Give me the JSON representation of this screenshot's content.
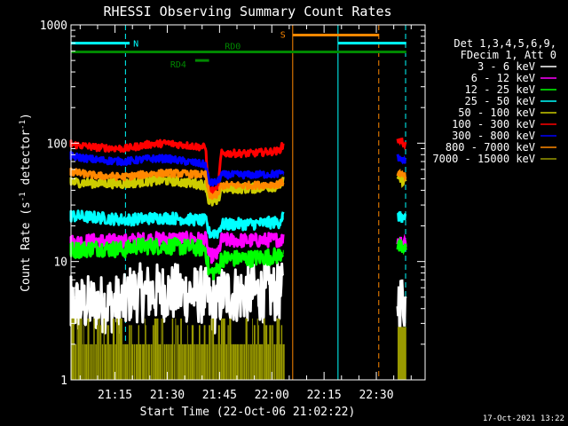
{
  "chart_data": {
    "type": "line",
    "title": "RHESSI Observing Summary Count Rates",
    "xlabel": "Start Time (22-Oct-06 21:02:22)",
    "ylabel_main": "Count Rate (s",
    "ylabel_sup": "-1",
    "ylabel_mid": " detector",
    "ylabel_end": ")",
    "x_axis": {
      "start": "21:02:22",
      "end": "22:40:00",
      "unit": "minutes after 21:00"
    },
    "y_axis": {
      "scale": "log",
      "range": [
        1,
        1000
      ]
    },
    "x_ticks": [
      {
        "label": "21:15",
        "minute": 15
      },
      {
        "label": "21:30",
        "minute": 30
      },
      {
        "label": "21:45",
        "minute": 45
      },
      {
        "label": "22:00",
        "minute": 60
      },
      {
        "label": "22:15",
        "minute": 75
      },
      {
        "label": "22:30",
        "minute": 90
      }
    ],
    "y_ticks": [
      {
        "label": "1",
        "value": 1
      },
      {
        "label": "10",
        "value": 10
      },
      {
        "label": "100",
        "value": 100
      },
      {
        "label": "1000",
        "value": 1000
      }
    ],
    "legend": {
      "placement": "right",
      "header": [
        "Det 1,3,4,5,6,9,",
        "FDecim 1, Att 0"
      ]
    },
    "series": [
      {
        "name": "3 - 6 keV",
        "color": "#ffffff",
        "points": [
          [
            0.8,
            4.2
          ],
          [
            10,
            4.4
          ],
          [
            17.9,
            4.4
          ],
          [
            19.5,
            5.4
          ],
          [
            30,
            5.5
          ],
          [
            41,
            5.2
          ],
          [
            42.5,
            4.3
          ],
          [
            44.5,
            4.3
          ],
          [
            45.5,
            5.3
          ],
          [
            54,
            5.4
          ],
          [
            63.3,
            5.5
          ]
        ],
        "recovery": [
          [
            96.1,
            4.8
          ],
          [
            98.6,
            4.5
          ]
        ],
        "noise": 0.25,
        "thick": 3
      },
      {
        "name": "6 - 12 keV",
        "color": "#ff00ff",
        "points": [
          [
            0.8,
            14.5
          ],
          [
            10,
            15.0
          ],
          [
            17.9,
            14.8
          ],
          [
            21,
            15.2
          ],
          [
            30,
            15.6
          ],
          [
            41,
            15.4
          ],
          [
            42,
            11.2
          ],
          [
            44.5,
            11.3
          ],
          [
            45.5,
            15.2
          ],
          [
            54,
            15.0
          ],
          [
            63.3,
            15.4
          ]
        ],
        "recovery": [
          [
            96.1,
            15.6
          ],
          [
            98.6,
            14.5
          ]
        ],
        "noise": 0.06,
        "thick": 3
      },
      {
        "name": "12 - 25 keV",
        "color": "#00ff00",
        "points": [
          [
            0.8,
            12.3
          ],
          [
            10,
            13.0
          ],
          [
            17.9,
            12.6
          ],
          [
            21,
            13.5
          ],
          [
            30,
            13.5
          ],
          [
            41,
            12.9
          ],
          [
            42,
            8.0
          ],
          [
            44.5,
            8.4
          ],
          [
            45.5,
            10.6
          ],
          [
            54,
            10.6
          ],
          [
            62,
            11.2
          ],
          [
            63.3,
            12.5
          ]
        ],
        "recovery": [
          [
            96.1,
            13.2
          ],
          [
            98.6,
            12.4
          ]
        ],
        "noise": 0.07,
        "thick": 3
      },
      {
        "name": "25 - 50 keV",
        "color": "#00ffff",
        "points": [
          [
            0.8,
            24.5
          ],
          [
            10,
            23.5
          ],
          [
            17.9,
            22.5
          ],
          [
            25,
            23.2
          ],
          [
            30,
            23.4
          ],
          [
            41,
            22.2
          ],
          [
            42,
            17.5
          ],
          [
            44.5,
            17.5
          ],
          [
            45.5,
            20.5
          ],
          [
            54,
            20.8
          ],
          [
            62,
            21.5
          ],
          [
            63.3,
            24.5
          ]
        ],
        "recovery": [
          [
            96.1,
            24.0
          ],
          [
            98.6,
            23.0
          ]
        ],
        "noise": 0.05,
        "thick": 3
      },
      {
        "name": "50 - 100 keV",
        "color": "#cccc00",
        "points": [
          [
            0.8,
            47.0
          ],
          [
            10,
            46.0
          ],
          [
            17.9,
            45.5
          ],
          [
            25,
            48.0
          ],
          [
            30,
            48.5
          ],
          [
            41,
            44.5
          ],
          [
            42,
            31.5
          ],
          [
            44.5,
            32.0
          ],
          [
            45.5,
            41.5
          ],
          [
            54,
            41.5
          ],
          [
            62,
            43.5
          ],
          [
            63.3,
            48.0
          ]
        ],
        "recovery": [
          [
            96.1,
            49.0
          ],
          [
            98.6,
            48.0
          ]
        ],
        "noise": 0.04,
        "thick": 3
      },
      {
        "name": "100 - 300 keV",
        "color": "#ff0000",
        "points": [
          [
            0.8,
            99
          ],
          [
            10,
            92
          ],
          [
            17.9,
            90
          ],
          [
            25,
            98
          ],
          [
            30,
            100
          ],
          [
            41,
            92
          ],
          [
            42,
            39.5
          ],
          [
            44.5,
            40.0
          ],
          [
            45.5,
            82
          ],
          [
            54,
            82
          ],
          [
            62,
            86
          ],
          [
            63.3,
            97
          ]
        ],
        "recovery": [
          [
            96.1,
            108
          ],
          [
            98.6,
            97
          ]
        ],
        "noise": 0.03,
        "thick": 3
      },
      {
        "name": "300 - 800 keV",
        "color": "#0000ff",
        "points": [
          [
            0.8,
            79
          ],
          [
            10,
            72
          ],
          [
            17.9,
            70
          ],
          [
            25,
            74
          ],
          [
            30,
            74
          ],
          [
            41,
            66
          ],
          [
            42,
            46.0
          ],
          [
            44.5,
            47.0
          ],
          [
            45.5,
            54
          ],
          [
            54,
            54
          ],
          [
            62,
            55
          ],
          [
            63.3,
            58
          ]
        ],
        "recovery": [
          [
            96.1,
            76
          ],
          [
            98.6,
            70
          ]
        ],
        "noise": 0.03,
        "thick": 3
      },
      {
        "name": "800 - 7000 keV",
        "color": "#ff8800",
        "points": [
          [
            0.8,
            58
          ],
          [
            10,
            53
          ],
          [
            17.9,
            52
          ],
          [
            25,
            55
          ],
          [
            30,
            56
          ],
          [
            41,
            54
          ],
          [
            42,
            36.0
          ],
          [
            44.5,
            36.5
          ],
          [
            45.5,
            44.0
          ],
          [
            54,
            44.0
          ],
          [
            62,
            45.0
          ],
          [
            63.3,
            47.0
          ]
        ],
        "recovery": [
          [
            96.1,
            56
          ],
          [
            98.6,
            52
          ]
        ],
        "noise": 0.03,
        "thick": 3
      },
      {
        "name": "7000 - 15000 keV",
        "color": "#999900",
        "points": [
          [
            0.8,
            1.55
          ],
          [
            63.3,
            1.55
          ]
        ],
        "recovery": [
          [
            96.1,
            2.2
          ],
          [
            98.6,
            2.2
          ]
        ],
        "noise": 0,
        "thick": 0,
        "band": true
      }
    ],
    "flag_lines": [
      {
        "id": "SAA",
        "label": "",
        "color": "#00ffff",
        "y": 700,
        "from": 0.8,
        "to": 18.0
      },
      {
        "id": "N",
        "label": "N",
        "color": "#00ffff",
        "y": 700,
        "from": 18.0,
        "to": 19.2
      },
      {
        "id": "RD0",
        "label": "RD0",
        "color": "#008800",
        "y": 590,
        "from": 0.8,
        "to": 98.6
      },
      {
        "id": "RD4",
        "label": "RD4",
        "color": "#008800",
        "y": 500,
        "from": 38.0,
        "to": 42.0
      },
      {
        "id": "S",
        "label": "S",
        "color": "#ff8800",
        "y": 820,
        "from": 66.0,
        "to": 90.7
      },
      {
        "id": "SAA2",
        "label": "",
        "color": "#00ffff",
        "y": 700,
        "from": 79.0,
        "to": 98.6
      }
    ],
    "vertical_markers": [
      {
        "minute": 18.0,
        "color": "#00ffff",
        "style": "dashed"
      },
      {
        "minute": 66.0,
        "color": "#ff8800",
        "style": "solid"
      },
      {
        "minute": 79.0,
        "color": "#00ffff",
        "style": "solid"
      },
      {
        "minute": 90.7,
        "color": "#ff8800",
        "style": "dashed"
      },
      {
        "minute": 98.4,
        "color": "#00ffff",
        "style": "dashed"
      },
      {
        "minute": 0.8,
        "color": "#00ffff",
        "style": "solid"
      }
    ],
    "grid": false
  },
  "timestamp": "17-Oct-2021 13:22",
  "colors": {
    "background": "#000000",
    "axis": "#ffffff"
  }
}
